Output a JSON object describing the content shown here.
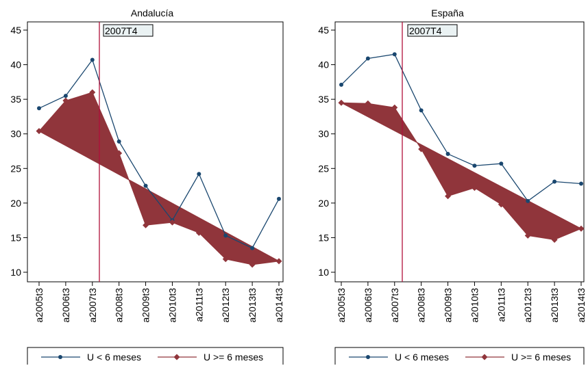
{
  "chart_data": [
    {
      "type": "line",
      "title": "Andalucía",
      "categories": [
        "a2005t3",
        "a2006t3",
        "a2007t3",
        "a2008t3",
        "a2009t3",
        "a2010t3",
        "a2011t3",
        "a2012t3",
        "a2013t3",
        "a2014t3"
      ],
      "y_ticks": [
        10,
        15,
        20,
        25,
        30,
        35,
        40,
        45
      ],
      "ylim": [
        10,
        45
      ],
      "grid": false,
      "annotation": "2007T4",
      "series": [
        {
          "name": "U < 6 meses",
          "values": [
            33.7,
            35.5,
            40.7,
            28.9,
            22.5,
            17.5,
            24.2,
            15.3,
            13.5,
            20.6
          ],
          "color": "#1a476f",
          "marker": "circle"
        },
        {
          "name": "U >= 6 meses",
          "values": [
            30.4,
            34.8,
            36.0,
            27.2,
            16.8,
            17.2,
            15.7,
            11.9,
            11.1,
            11.6
          ],
          "color": "#90353b",
          "marker": "diamond"
        }
      ],
      "trend_line": [
        30.4,
        11.6
      ],
      "legend": "bottom"
    },
    {
      "type": "line",
      "title": "España",
      "categories": [
        "a2005t3",
        "a2006t3",
        "a2007t3",
        "a2008t3",
        "a2009t3",
        "a2010t3",
        "a2011t3",
        "a2012t3",
        "a2013t3",
        "a2014t3"
      ],
      "y_ticks": [
        10,
        15,
        20,
        25,
        30,
        35,
        40,
        45
      ],
      "ylim": [
        10,
        45
      ],
      "grid": false,
      "annotation": "2007T4",
      "series": [
        {
          "name": "U < 6 meses",
          "values": [
            37.1,
            40.9,
            41.5,
            33.4,
            27.1,
            25.4,
            25.7,
            20.3,
            23.1,
            22.8
          ],
          "color": "#1a476f",
          "marker": "circle"
        },
        {
          "name": "U >= 6 meses",
          "values": [
            34.5,
            34.4,
            33.8,
            27.8,
            21.0,
            22.2,
            19.8,
            15.3,
            14.7,
            16.3
          ],
          "color": "#90353b",
          "marker": "diamond"
        }
      ],
      "trend_line": [
        34.5,
        16.3
      ],
      "legend": "bottom"
    }
  ]
}
